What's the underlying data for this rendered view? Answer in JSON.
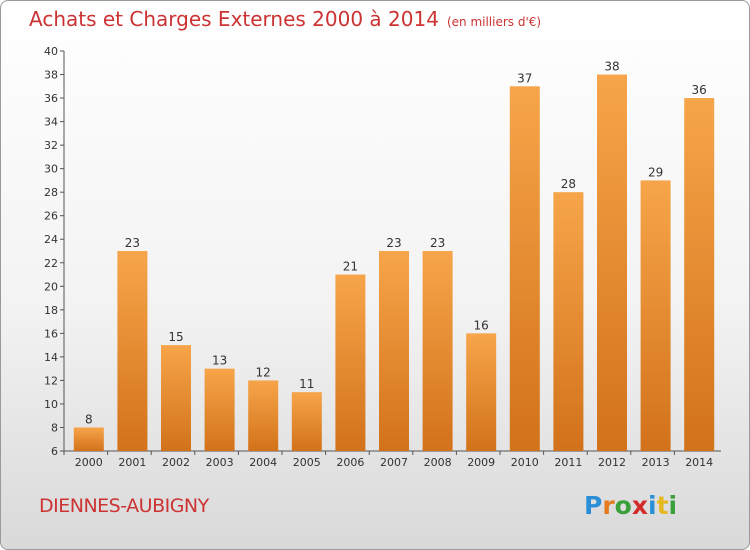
{
  "title": "Achats et Charges Externes 2000 à 2014",
  "unit": "(en milliers d'€)",
  "commune": "DIENNES-AUBIGNY",
  "logo": {
    "text": "Proxiti",
    "letters": [
      {
        "c": "P",
        "color": "#2a8fd6"
      },
      {
        "c": "r",
        "color": "#e57b1f"
      },
      {
        "c": "o",
        "color": "#3aa03a"
      },
      {
        "c": "x",
        "color": "#d22b2b"
      },
      {
        "c": "i",
        "color": "#2a8fd6"
      },
      {
        "c": "t",
        "color": "#e5b91f"
      },
      {
        "c": "i",
        "color": "#3aa03a"
      }
    ]
  },
  "colors": {
    "bar_top": "#f7a54a",
    "bar_bottom": "#d2721a",
    "title": "#cc3333"
  },
  "chart_data": {
    "type": "bar",
    "title": "Achats et Charges Externes 2000 à 2014",
    "categories": [
      "2000",
      "2001",
      "2002",
      "2003",
      "2004",
      "2005",
      "2006",
      "2007",
      "2008",
      "2009",
      "2010",
      "2011",
      "2012",
      "2013",
      "2014"
    ],
    "values": [
      8,
      23,
      15,
      13,
      12,
      11,
      21,
      23,
      23,
      16,
      37,
      28,
      38,
      29,
      36
    ],
    "ylim": [
      6,
      40
    ],
    "yticks": [
      6,
      8,
      10,
      12,
      14,
      16,
      18,
      20,
      22,
      24,
      26,
      28,
      30,
      32,
      34,
      36,
      38,
      40
    ],
    "grid": false,
    "data_labels": true
  }
}
